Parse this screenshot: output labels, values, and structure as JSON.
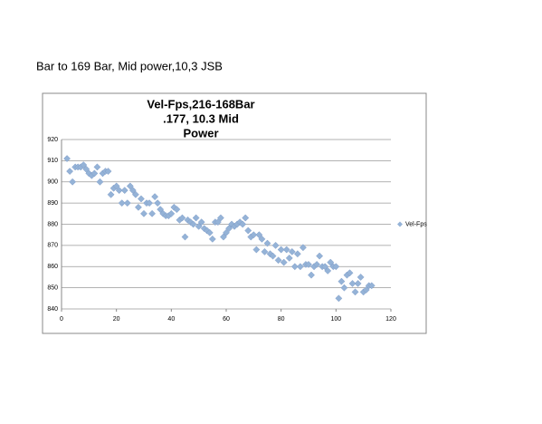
{
  "caption": "Bar to 169 Bar, Mid power,10,3 JSB",
  "chart_data": {
    "type": "scatter",
    "title": [
      "Vel-Fps,216-168Bar",
      ".177, 10.3 Mid",
      "Power"
    ],
    "x": [
      2,
      3,
      4,
      5,
      6,
      7,
      8,
      9,
      10,
      11,
      12,
      13,
      14,
      15,
      16,
      17,
      18,
      19,
      20,
      21,
      22,
      23,
      24,
      25,
      26,
      27,
      28,
      29,
      30,
      31,
      32,
      33,
      34,
      35,
      36,
      37,
      38,
      39,
      40,
      41,
      42,
      43,
      44,
      45,
      46,
      47,
      48,
      49,
      50,
      51,
      52,
      53,
      54,
      55,
      56,
      57,
      58,
      59,
      60,
      61,
      62,
      63,
      64,
      65,
      66,
      67,
      68,
      69,
      70,
      71,
      72,
      73,
      74,
      75,
      76,
      77,
      78,
      79,
      80,
      81,
      82,
      83,
      84,
      85,
      86,
      87,
      88,
      89,
      90,
      91,
      92,
      93,
      94,
      95,
      96,
      97,
      98,
      99,
      100,
      101,
      102,
      103,
      104,
      105,
      106,
      107,
      108,
      109,
      110,
      111,
      112,
      113
    ],
    "series": [
      {
        "name": "Vel-Fps",
        "color": "#95b3d7",
        "values": [
          911,
          905,
          900,
          907,
          907,
          907,
          908,
          906,
          904,
          903,
          904,
          907,
          900,
          904,
          905,
          905,
          894,
          897,
          898,
          896,
          890,
          896,
          890,
          898,
          896,
          894,
          888,
          892,
          885,
          890,
          890,
          885,
          893,
          890,
          887,
          885,
          884,
          884,
          885,
          888,
          887,
          882,
          883,
          874,
          882,
          881,
          880,
          883,
          879,
          881,
          878,
          877,
          876,
          873,
          881,
          881,
          883,
          874,
          876,
          878,
          880,
          879,
          880,
          881,
          880,
          883,
          877,
          874,
          875,
          868,
          875,
          873,
          867,
          871,
          866,
          865,
          870,
          863,
          868,
          862,
          868,
          864,
          867,
          860,
          866,
          860,
          869,
          861,
          861,
          856,
          860,
          861,
          865,
          860,
          860,
          858,
          862,
          860,
          860,
          845,
          853,
          850,
          856,
          857,
          852,
          848,
          852,
          855,
          848,
          849,
          851,
          851
        ]
      }
    ],
    "xlim": [
      0,
      120
    ],
    "xticks": [
      0,
      20,
      40,
      60,
      80,
      100,
      120
    ],
    "ylim": [
      840,
      920
    ],
    "yticks": [
      840,
      850,
      860,
      870,
      880,
      890,
      900,
      910,
      920
    ],
    "grid": true,
    "legend": "right"
  }
}
